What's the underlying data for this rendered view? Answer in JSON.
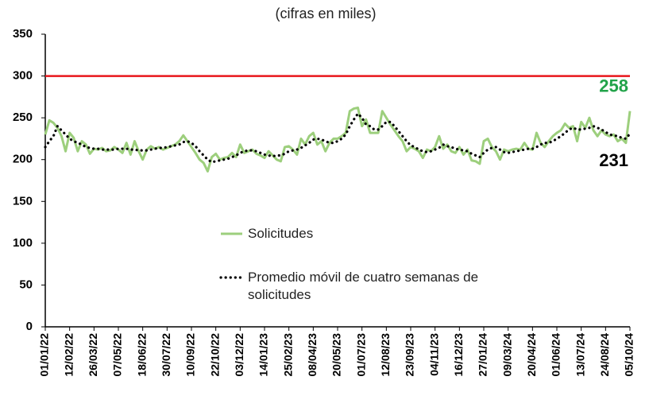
{
  "chart_data": {
    "type": "line",
    "subtitle": "(cifras en miles)",
    "categories": [
      "01/01/22",
      null,
      null,
      null,
      null,
      null,
      "12/02/22",
      null,
      null,
      null,
      null,
      null,
      "26/03/22",
      null,
      null,
      null,
      null,
      null,
      "07/05/22",
      null,
      null,
      null,
      null,
      null,
      "18/06/22",
      null,
      null,
      null,
      null,
      null,
      "30/07/22",
      null,
      null,
      null,
      null,
      null,
      "10/09/22",
      null,
      null,
      null,
      null,
      null,
      "22/10/22",
      null,
      null,
      null,
      null,
      null,
      "03/12/22",
      null,
      null,
      null,
      null,
      null,
      "14/01/23",
      null,
      null,
      null,
      null,
      null,
      "25/02/23",
      null,
      null,
      null,
      null,
      null,
      "08/04/23",
      null,
      null,
      null,
      null,
      null,
      "20/05/23",
      null,
      null,
      null,
      null,
      null,
      "01/07/23",
      null,
      null,
      null,
      null,
      null,
      "12/08/23",
      null,
      null,
      null,
      null,
      null,
      "23/09/23",
      null,
      null,
      null,
      null,
      null,
      "04/11/23",
      null,
      null,
      null,
      null,
      null,
      "16/12/23",
      null,
      null,
      null,
      null,
      null,
      "27/01/24",
      null,
      null,
      null,
      null,
      null,
      "09/03/24",
      null,
      null,
      null,
      null,
      null,
      "20/04/24",
      null,
      null,
      null,
      null,
      null,
      "01/06/24",
      null,
      null,
      null,
      null,
      null,
      "13/07/24",
      null,
      null,
      null,
      null,
      null,
      "24/08/24",
      null,
      null,
      null,
      null,
      null,
      "05/10/24"
    ],
    "series": [
      {
        "name": "Solicitudes",
        "color": "#9dcf7d",
        "style": "solid",
        "end_label_color": "#22a34a",
        "values": [
          230,
          247,
          244,
          238,
          228,
          210,
          232,
          226,
          210,
          222,
          218,
          207,
          213,
          212,
          214,
          210,
          211,
          215,
          212,
          208,
          220,
          206,
          222,
          210,
          200,
          212,
          216,
          213,
          215,
          212,
          214,
          216,
          218,
          222,
          229,
          222,
          215,
          208,
          200,
          196,
          186,
          203,
          207,
          200,
          202,
          203,
          208,
          203,
          218,
          208,
          210,
          212,
          207,
          205,
          202,
          210,
          205,
          200,
          198,
          215,
          216,
          212,
          206,
          225,
          218,
          228,
          232,
          218,
          222,
          210,
          220,
          225,
          225,
          228,
          232,
          258,
          261,
          262,
          240,
          248,
          232,
          232,
          232,
          258,
          250,
          242,
          235,
          228,
          222,
          210,
          215,
          213,
          210,
          202,
          212,
          210,
          215,
          228,
          213,
          218,
          210,
          208,
          215,
          206,
          212,
          199,
          198,
          195,
          222,
          225,
          215,
          210,
          200,
          212,
          210,
          212,
          213,
          212,
          220,
          213,
          212,
          232,
          220,
          215,
          222,
          228,
          232,
          235,
          243,
          238,
          240,
          222,
          245,
          238,
          250,
          235,
          228,
          235,
          230,
          228,
          230,
          222,
          225,
          220,
          258
        ]
      },
      {
        "name": "Promedio móvil de cuatro semanas de solicitudes",
        "color": "#000000",
        "style": "dotted",
        "end_label_color": "#000000",
        "values": [
          215,
          222,
          228,
          240,
          235,
          230,
          225,
          222,
          220,
          218,
          215,
          214,
          213,
          213,
          212,
          212,
          212,
          212,
          213,
          213,
          213,
          212,
          212,
          211,
          211,
          211,
          212,
          213,
          214,
          214,
          215,
          216,
          217,
          218,
          221,
          222,
          220,
          216,
          210,
          205,
          200,
          197,
          198,
          199,
          200,
          201,
          203,
          205,
          208,
          210,
          211,
          211,
          210,
          208,
          206,
          205,
          204,
          205,
          205,
          207,
          210,
          211,
          212,
          214,
          217,
          220,
          224,
          225,
          224,
          222,
          220,
          220,
          222,
          225,
          230,
          240,
          248,
          255,
          250,
          242,
          240,
          236,
          236,
          240,
          245,
          245,
          240,
          234,
          228,
          222,
          217,
          215,
          212,
          210,
          209,
          210,
          212,
          214,
          218,
          216,
          215,
          213,
          212,
          211,
          210,
          207,
          205,
          203,
          208,
          212,
          214,
          215,
          212,
          209,
          208,
          209,
          210,
          211,
          212,
          213,
          213,
          215,
          218,
          220,
          220,
          222,
          225,
          228,
          232,
          236,
          238,
          236,
          236,
          237,
          238,
          240,
          238,
          236,
          233,
          230,
          229,
          228,
          226,
          225,
          231
        ]
      }
    ],
    "reference_line": {
      "value": 300,
      "color": "#e8161b"
    },
    "ylim": [
      0,
      350
    ],
    "yticks": [
      0,
      50,
      100,
      150,
      200,
      250,
      300,
      350
    ],
    "grid": false,
    "end_labels": true
  }
}
